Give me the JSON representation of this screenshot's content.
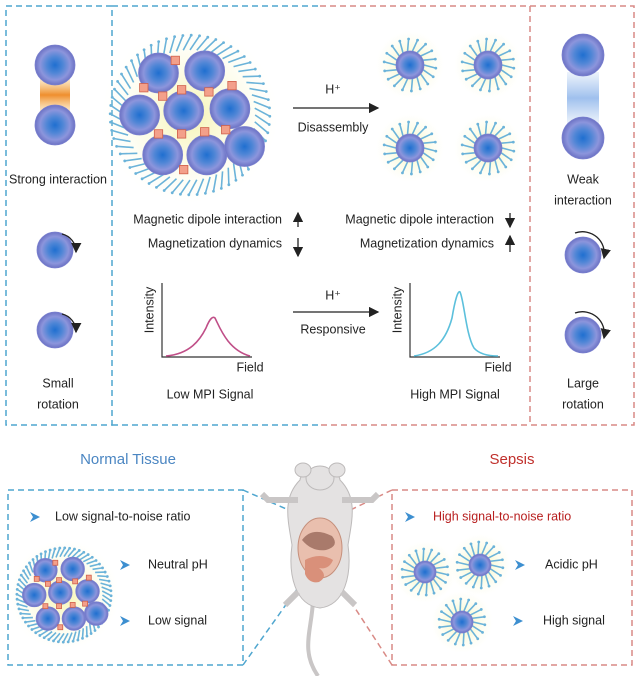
{
  "mechanism": {
    "left_panel": {
      "interaction": "Strong interaction",
      "rotation": [
        "Small",
        "rotation"
      ]
    },
    "right_panel": {
      "interaction": [
        "Weak",
        "interaction"
      ],
      "rotation": [
        "Large",
        "rotation"
      ]
    },
    "disassembly": {
      "trigger": "H⁺",
      "label": "Disassembly"
    },
    "assembled_effects": [
      "Magnetic dipole interaction",
      "Magnetization dynamics"
    ],
    "disassembled_effects": [
      "Magnetic dipole interaction",
      "Magnetization dynamics"
    ],
    "response": {
      "trigger": "H⁺",
      "label": "Responsive"
    },
    "plots": [
      {
        "y_label": "Intensity",
        "x_label": "Field",
        "caption": "Low MPI Signal"
      },
      {
        "y_label": "Intensity",
        "x_label": "Field",
        "caption": "High MPI Signal"
      }
    ]
  },
  "comparison": {
    "normal": {
      "title": "Normal Tissue",
      "items": [
        "Low signal-to-noise ratio",
        "Neutral pH",
        "Low signal"
      ]
    },
    "sepsis": {
      "title": "Sepsis",
      "items": [
        "High signal-to-noise ratio",
        "Acidic pH",
        "High signal"
      ]
    }
  }
}
